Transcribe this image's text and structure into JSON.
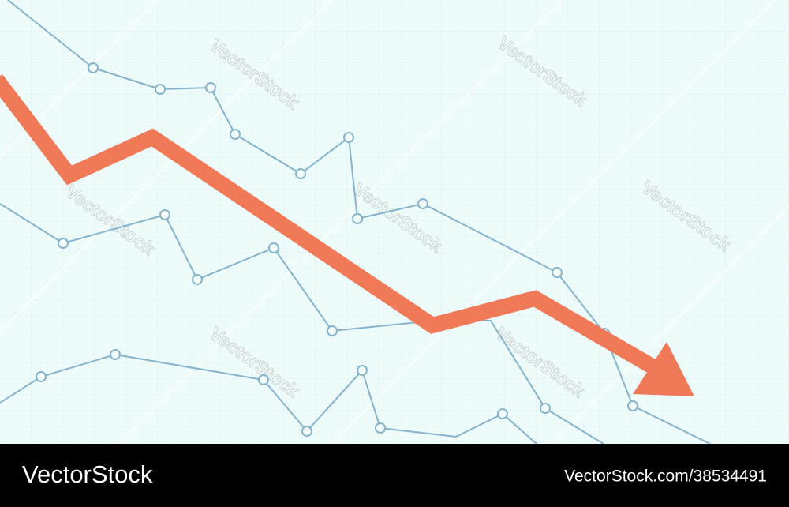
{
  "watermark": "VectorStock",
  "footer": {
    "brand": "VectorStock",
    "id": "VectorStock.com/38534491"
  }
}
